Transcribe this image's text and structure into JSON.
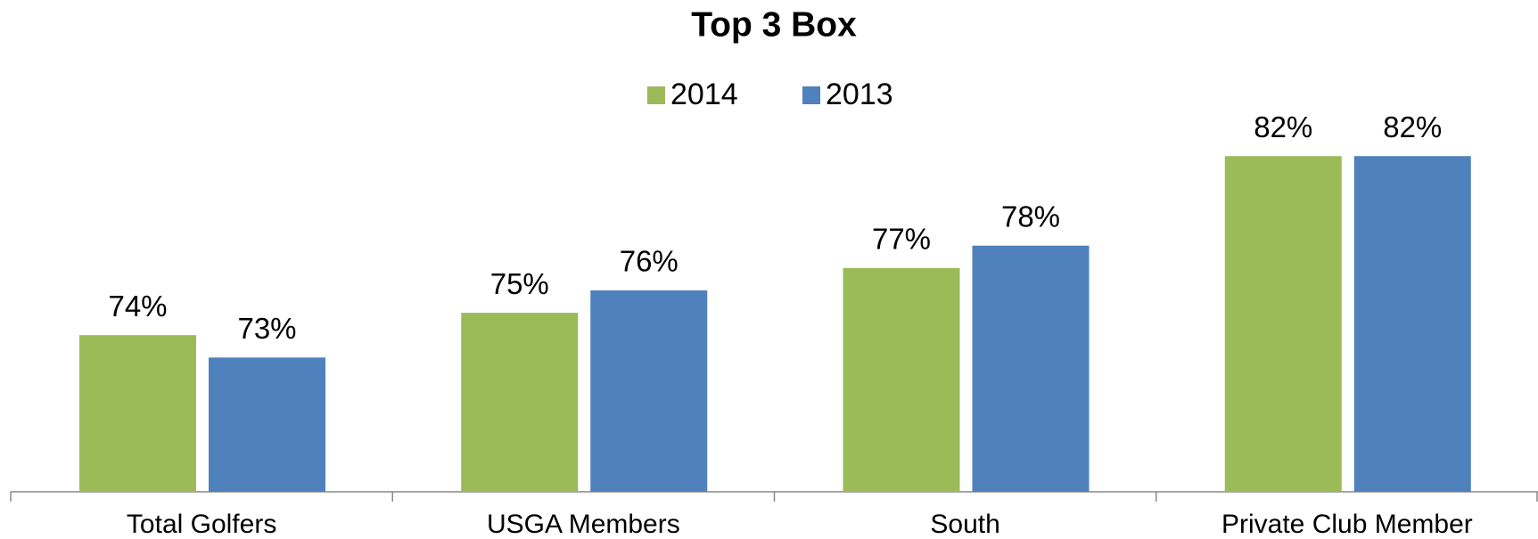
{
  "chart_data": {
    "type": "bar",
    "title": "Top 3 Box",
    "categories": [
      "Total Golfers",
      "USGA Members",
      "South",
      "Private Club Member"
    ],
    "series": [
      {
        "name": "2014",
        "color": "#9bbb59",
        "values": [
          74,
          75,
          77,
          82
        ],
        "value_labels": [
          "74%",
          "75%",
          "77%",
          "82%"
        ]
      },
      {
        "name": "2013",
        "color": "#4f81bd",
        "values": [
          73,
          76,
          78,
          82
        ],
        "value_labels": [
          "73%",
          "76%",
          "78%",
          "82%"
        ]
      }
    ],
    "ylim": [
      67,
      84
    ]
  }
}
